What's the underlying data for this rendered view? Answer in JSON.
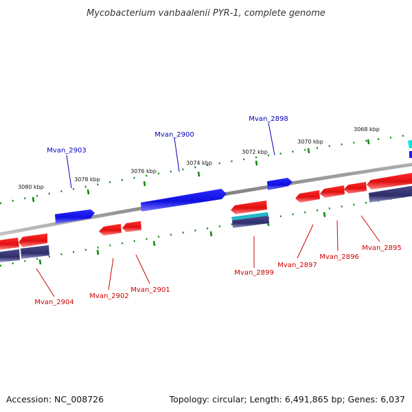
{
  "title": "Mycobacterium vanbaalenii PYR-1, complete genome",
  "footer": {
    "accession": "Accession: NC_008726",
    "summary": "Topology: circular; Length: 6,491,865 bp; Genes: 6,037"
  },
  "colors": {
    "forward_cds": "#1a1aee",
    "reverse_cds": "#ee1a1a",
    "label_forward": "#0000bb",
    "label_reverse": "#cc0000",
    "tick_green": "#118811",
    "backbone": "#888888",
    "rna_teal": "#22b8c8",
    "pseudo_purple": "#3a3a7c",
    "cyan_feature": "#00e5ee"
  },
  "ticks": [
    "3068 kbp",
    "3070 kbp",
    "3072 kbp",
    "3074 kbp",
    "3076 kbp",
    "3078 kbp",
    "3080 kbp"
  ],
  "genes_forward": [
    "Mvan_2898",
    "Mvan_2900",
    "Mvan_2903"
  ],
  "genes_reverse": [
    "Mvan_2895",
    "Mvan_2896",
    "Mvan_2897",
    "Mvan_2899",
    "Mvan_2901",
    "Mvan_2902",
    "Mvan_2904"
  ]
}
